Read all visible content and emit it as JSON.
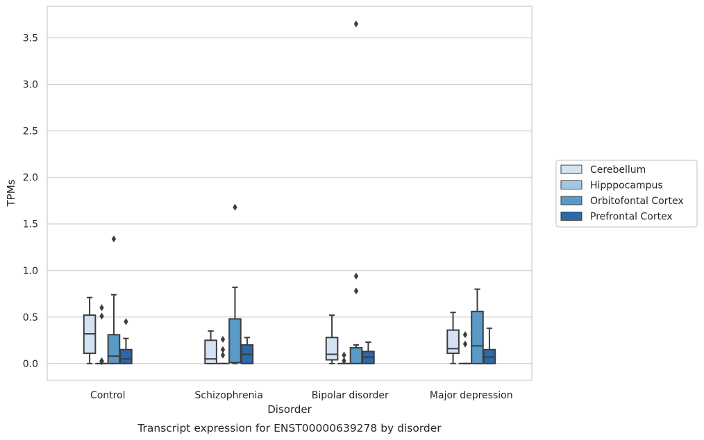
{
  "caption": "Transcript expression for ENST00000639278 by disorder",
  "chart_data": {
    "type": "box",
    "xlabel": "Disorder",
    "ylabel": "TPMs",
    "ylim": [
      -0.18,
      3.84
    ],
    "yticks": [
      0.0,
      0.5,
      1.0,
      1.5,
      2.0,
      2.5,
      3.0,
      3.5
    ],
    "ytick_labels": [
      "0.0",
      "0.5",
      "1.0",
      "1.5",
      "2.0",
      "2.5",
      "3.0",
      "3.5"
    ],
    "grid": true,
    "legend_position": "right",
    "categories": [
      "Control",
      "Schizophrenia",
      "Bipolar disorder",
      "Major depression"
    ],
    "series": [
      {
        "name": "Cerebellum",
        "color": "#d4e3f3",
        "boxes": [
          {
            "whisker_low": 0.0,
            "q1": 0.11,
            "median": 0.32,
            "q3": 0.52,
            "whisker_high": 0.71,
            "outliers": []
          },
          {
            "whisker_low": 0.0,
            "q1": 0.0,
            "median": 0.05,
            "q3": 0.25,
            "whisker_high": 0.35,
            "outliers": []
          },
          {
            "whisker_low": 0.0,
            "q1": 0.04,
            "median": 0.1,
            "q3": 0.28,
            "whisker_high": 0.52,
            "outliers": []
          },
          {
            "whisker_low": 0.0,
            "q1": 0.11,
            "median": 0.16,
            "q3": 0.36,
            "whisker_high": 0.55,
            "outliers": []
          }
        ]
      },
      {
        "name": "Hipppocampus",
        "color": "#9fc7e0",
        "boxes": [
          {
            "whisker_low": 0.0,
            "q1": 0.0,
            "median": 0.0,
            "q3": 0.0,
            "whisker_high": 0.0,
            "outliers": [
              0.6,
              0.51,
              0.03,
              0.02
            ]
          },
          {
            "whisker_low": 0.0,
            "q1": 0.0,
            "median": 0.0,
            "q3": 0.0,
            "whisker_high": 0.0,
            "outliers": [
              0.26,
              0.15,
              0.09
            ]
          },
          {
            "whisker_low": 0.0,
            "q1": 0.0,
            "median": 0.0,
            "q3": 0.0,
            "whisker_high": 0.0,
            "outliers": [
              0.09,
              0.03
            ]
          },
          {
            "whisker_low": 0.0,
            "q1": 0.0,
            "median": 0.0,
            "q3": 0.0,
            "whisker_high": 0.0,
            "outliers": [
              0.31,
              0.21
            ]
          }
        ]
      },
      {
        "name": "Orbitofontal Cortex",
        "color": "#5a9ac6",
        "boxes": [
          {
            "whisker_low": 0.0,
            "q1": 0.0,
            "median": 0.08,
            "q3": 0.31,
            "whisker_high": 0.74,
            "outliers": [
              1.34
            ]
          },
          {
            "whisker_low": 0.0,
            "q1": 0.01,
            "median": 0.01,
            "q3": 0.48,
            "whisker_high": 0.82,
            "outliers": [
              1.68
            ]
          },
          {
            "whisker_low": 0.0,
            "q1": 0.0,
            "median": 0.0,
            "q3": 0.17,
            "whisker_high": 0.2,
            "outliers": [
              3.65,
              0.94,
              0.78
            ]
          },
          {
            "whisker_low": 0.0,
            "q1": 0.0,
            "median": 0.19,
            "q3": 0.56,
            "whisker_high": 0.8,
            "outliers": []
          }
        ]
      },
      {
        "name": "Prefrontal Cortex",
        "color": "#2d68a8",
        "boxes": [
          {
            "whisker_low": 0.0,
            "q1": 0.0,
            "median": 0.05,
            "q3": 0.15,
            "whisker_high": 0.27,
            "outliers": [
              0.45
            ]
          },
          {
            "whisker_low": 0.0,
            "q1": 0.0,
            "median": 0.1,
            "q3": 0.2,
            "whisker_high": 0.28,
            "outliers": []
          },
          {
            "whisker_low": 0.0,
            "q1": 0.0,
            "median": 0.07,
            "q3": 0.13,
            "whisker_high": 0.23,
            "outliers": []
          },
          {
            "whisker_low": 0.0,
            "q1": 0.0,
            "median": 0.07,
            "q3": 0.15,
            "whisker_high": 0.38,
            "outliers": []
          }
        ]
      }
    ]
  }
}
